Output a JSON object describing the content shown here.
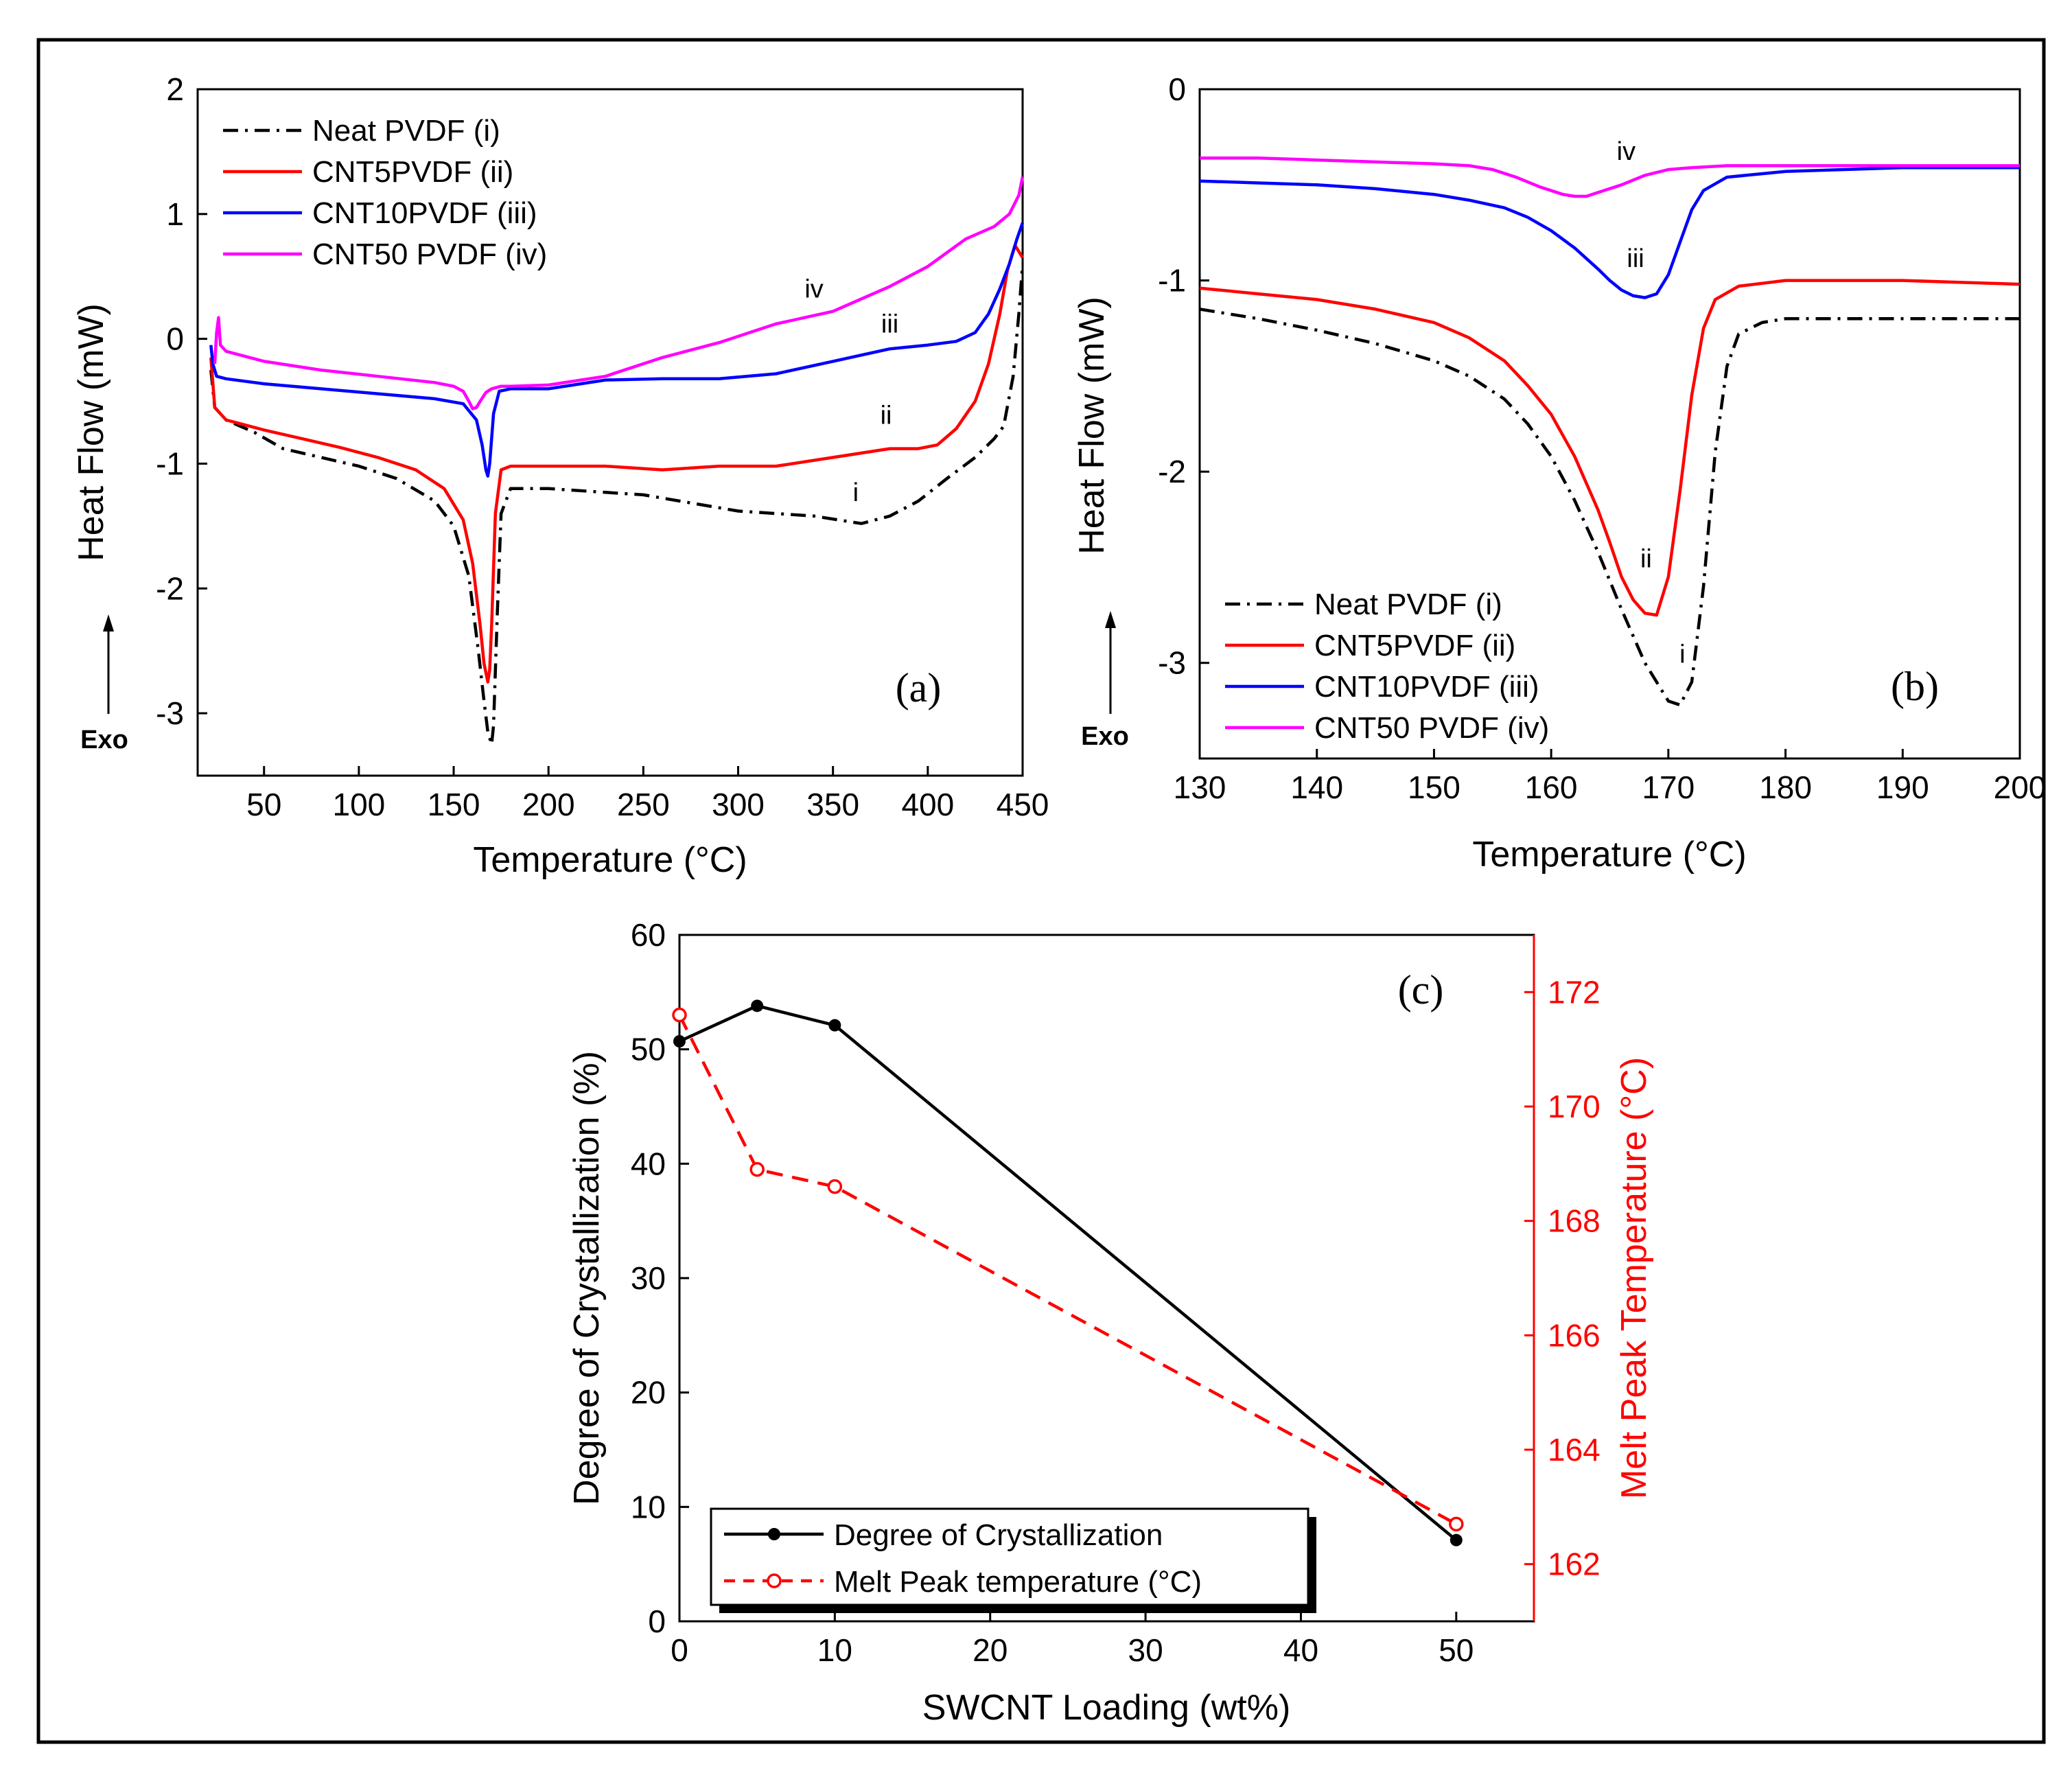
{
  "chart_data": [
    {
      "panel": "(a)",
      "type": "line",
      "xlabel": "Temperature (°C)",
      "ylabel": "Heat Flow (mW)",
      "exo_label": "Exo",
      "xlim": [
        15,
        450
      ],
      "ylim": [
        -3.5,
        2
      ],
      "xticks": [
        50,
        100,
        150,
        200,
        250,
        300,
        350,
        400,
        450
      ],
      "yticks": [
        -3,
        -2,
        -1,
        0,
        1,
        2
      ],
      "legend_position": "top-left",
      "series": [
        {
          "name": "Neat PVDF (i)",
          "color": "#000000",
          "dash": "dashdot",
          "marker_text": "i",
          "marker_at": [
            362,
            -1.3
          ],
          "x": [
            22,
            24,
            30,
            45,
            60,
            80,
            100,
            120,
            140,
            150,
            158,
            163,
            166,
            168,
            170,
            171,
            173,
            175,
            180,
            200,
            250,
            300,
            340,
            365,
            380,
            395,
            410,
            425,
            435,
            440,
            445,
            448,
            450
          ],
          "y": [
            -0.25,
            -0.55,
            -0.65,
            -0.75,
            -0.88,
            -0.95,
            -1.02,
            -1.12,
            -1.3,
            -1.5,
            -1.9,
            -2.5,
            -2.9,
            -3.15,
            -3.25,
            -3.1,
            -2.2,
            -1.4,
            -1.2,
            -1.2,
            -1.25,
            -1.38,
            -1.42,
            -1.48,
            -1.42,
            -1.3,
            -1.12,
            -0.95,
            -0.8,
            -0.7,
            -0.3,
            0.2,
            0.6
          ]
        },
        {
          "name": "CNT5PVDF (ii)",
          "color": "#ff0000",
          "dash": "solid",
          "marker_text": "ii",
          "marker_at": [
            378,
            -0.68
          ],
          "x": [
            22,
            24,
            30,
            50,
            70,
            90,
            110,
            130,
            145,
            155,
            160,
            164,
            166,
            168,
            169,
            170,
            172,
            175,
            180,
            200,
            230,
            260,
            290,
            320,
            350,
            380,
            395,
            405,
            415,
            425,
            432,
            438,
            442,
            446,
            450
          ],
          "y": [
            -0.15,
            -0.55,
            -0.65,
            -0.73,
            -0.8,
            -0.87,
            -0.95,
            -1.05,
            -1.2,
            -1.45,
            -1.8,
            -2.3,
            -2.6,
            -2.75,
            -2.65,
            -2.3,
            -1.4,
            -1.05,
            -1.02,
            -1.02,
            -1.02,
            -1.05,
            -1.02,
            -1.02,
            -0.95,
            -0.88,
            -0.88,
            -0.85,
            -0.72,
            -0.5,
            -0.2,
            0.2,
            0.55,
            0.75,
            0.65
          ]
        },
        {
          "name": "CNT10PVDF (iii)",
          "color": "#0000ff",
          "dash": "solid",
          "marker_text": "iii",
          "marker_at": [
            380,
            0.05
          ],
          "x": [
            22,
            23,
            25,
            30,
            50,
            80,
            110,
            140,
            155,
            162,
            165,
            167,
            168,
            169,
            171,
            174,
            180,
            200,
            230,
            260,
            290,
            320,
            350,
            380,
            400,
            415,
            425,
            432,
            438,
            443,
            447,
            450
          ],
          "y": [
            -0.05,
            -0.2,
            -0.3,
            -0.32,
            -0.36,
            -0.4,
            -0.44,
            -0.48,
            -0.52,
            -0.65,
            -0.85,
            -1.05,
            -1.1,
            -1.0,
            -0.6,
            -0.42,
            -0.4,
            -0.4,
            -0.33,
            -0.32,
            -0.32,
            -0.28,
            -0.18,
            -0.08,
            -0.05,
            -0.02,
            0.05,
            0.2,
            0.4,
            0.6,
            0.8,
            0.93
          ]
        },
        {
          "name": "CNT50 PVDF (iv)",
          "color": "#ff00ff",
          "dash": "solid",
          "marker_text": "iv",
          "marker_at": [
            340,
            0.33
          ],
          "x": [
            24,
            25,
            26,
            27,
            30,
            50,
            80,
            110,
            140,
            150,
            155,
            158,
            160,
            162,
            164,
            167,
            170,
            175,
            180,
            200,
            230,
            260,
            290,
            320,
            350,
            380,
            400,
            420,
            435,
            443,
            448,
            450
          ],
          "y": [
            -0.2,
            0.05,
            0.17,
            -0.05,
            -0.1,
            -0.18,
            -0.25,
            -0.3,
            -0.35,
            -0.38,
            -0.42,
            -0.5,
            -0.56,
            -0.55,
            -0.5,
            -0.43,
            -0.4,
            -0.38,
            -0.38,
            -0.37,
            -0.3,
            -0.15,
            -0.03,
            0.12,
            0.22,
            0.42,
            0.58,
            0.8,
            0.9,
            1.0,
            1.15,
            1.3
          ]
        }
      ]
    },
    {
      "panel": "(b)",
      "type": "line",
      "xlabel": "Temperature (°C)",
      "ylabel": "Heat Flow (mW)",
      "exo_label": "Exo",
      "xlim": [
        130,
        200
      ],
      "ylim": [
        -3.5,
        0
      ],
      "xticks": [
        130,
        140,
        150,
        160,
        170,
        180,
        190,
        200
      ],
      "yticks": [
        -3,
        -2,
        -1,
        0
      ],
      "legend_position": "bottom-left",
      "series": [
        {
          "name": "Neat PVDF (i)",
          "color": "#000000",
          "dash": "dashdot",
          "marker_text": "i",
          "marker_at": [
            171.2,
            -3.0
          ],
          "x": [
            130,
            135,
            140,
            145,
            150,
            153,
            156,
            158,
            160,
            162,
            164,
            166,
            168,
            169,
            170,
            171,
            172,
            173,
            174,
            175,
            176,
            178,
            180,
            185,
            190,
            195,
            200
          ],
          "y": [
            -1.15,
            -1.2,
            -1.26,
            -1.33,
            -1.42,
            -1.5,
            -1.62,
            -1.75,
            -1.92,
            -2.15,
            -2.42,
            -2.72,
            -3.0,
            -3.1,
            -3.2,
            -3.22,
            -3.1,
            -2.6,
            -1.9,
            -1.45,
            -1.28,
            -1.22,
            -1.2,
            -1.2,
            -1.2,
            -1.2,
            -1.2
          ]
        },
        {
          "name": "CNT5PVDF (ii)",
          "color": "#ff0000",
          "dash": "solid",
          "marker_text": "ii",
          "marker_at": [
            168.1,
            -2.5
          ],
          "x": [
            130,
            135,
            140,
            145,
            150,
            153,
            156,
            158,
            160,
            162,
            164,
            165,
            166,
            167,
            168,
            169,
            170,
            171,
            172,
            173,
            174,
            176,
            180,
            185,
            190,
            195,
            200
          ],
          "y": [
            -1.04,
            -1.07,
            -1.1,
            -1.15,
            -1.22,
            -1.3,
            -1.42,
            -1.55,
            -1.7,
            -1.92,
            -2.2,
            -2.37,
            -2.55,
            -2.67,
            -2.74,
            -2.75,
            -2.55,
            -2.1,
            -1.6,
            -1.25,
            -1.1,
            -1.03,
            -1.0,
            -1.0,
            -1.0,
            -1.01,
            -1.02
          ]
        },
        {
          "name": "CNT10PVDF (iii)",
          "color": "#0000ff",
          "dash": "solid",
          "marker_text": "iii",
          "marker_at": [
            167.2,
            -0.93
          ],
          "x": [
            130,
            135,
            140,
            145,
            150,
            153,
            156,
            158,
            160,
            162,
            164,
            165,
            166,
            167,
            168,
            169,
            170,
            171,
            172,
            173,
            175,
            180,
            185,
            190,
            195,
            200
          ],
          "y": [
            -0.48,
            -0.49,
            -0.5,
            -0.52,
            -0.55,
            -0.58,
            -0.62,
            -0.67,
            -0.74,
            -0.83,
            -0.94,
            -1.0,
            -1.05,
            -1.08,
            -1.09,
            -1.07,
            -0.97,
            -0.8,
            -0.63,
            -0.53,
            -0.46,
            -0.43,
            -0.42,
            -0.41,
            -0.41,
            -0.41
          ]
        },
        {
          "name": "CNT50 PVDF (iv)",
          "color": "#ff00ff",
          "dash": "solid",
          "marker_text": "iv",
          "marker_at": [
            166.4,
            -0.37
          ],
          "x": [
            130,
            135,
            140,
            145,
            150,
            153,
            155,
            157,
            159,
            161,
            162,
            163,
            164,
            166,
            168,
            170,
            172,
            175,
            180,
            190,
            200
          ],
          "y": [
            -0.36,
            -0.36,
            -0.37,
            -0.38,
            -0.39,
            -0.4,
            -0.42,
            -0.46,
            -0.51,
            -0.55,
            -0.56,
            -0.56,
            -0.54,
            -0.5,
            -0.45,
            -0.42,
            -0.41,
            -0.4,
            -0.4,
            -0.4,
            -0.4
          ]
        }
      ]
    },
    {
      "panel": "(c)",
      "type": "line",
      "xlabel": "SWCNT Loading (wt%)",
      "ylabel": "Degree of Crystallization (%)",
      "ylabel_right": "Melt Peak Temperature (°C)",
      "xlim": [
        0,
        55
      ],
      "ylim": [
        0,
        60
      ],
      "ylim_right": [
        161,
        173
      ],
      "xticks": [
        0,
        10,
        20,
        30,
        40,
        50
      ],
      "yticks": [
        0,
        10,
        20,
        30,
        40,
        50,
        60
      ],
      "yticks_right": [
        162,
        164,
        166,
        168,
        170,
        172
      ],
      "legend_position": "bottom-left",
      "series": [
        {
          "name": "Degree of Crystallization",
          "axis": "left",
          "color": "#000000",
          "dash": "solid",
          "marker": "filled-circle",
          "x": [
            0,
            5,
            10,
            50
          ],
          "y": [
            50.7,
            53.8,
            52.1,
            7.1
          ]
        },
        {
          "name": "Melt Peak temperature (°C)",
          "axis": "right",
          "color": "#ff0000",
          "dash": "dashed",
          "marker": "open-circle",
          "x": [
            0,
            5,
            10,
            50
          ],
          "y": [
            171.6,
            168.9,
            168.6,
            162.7
          ]
        }
      ]
    }
  ]
}
